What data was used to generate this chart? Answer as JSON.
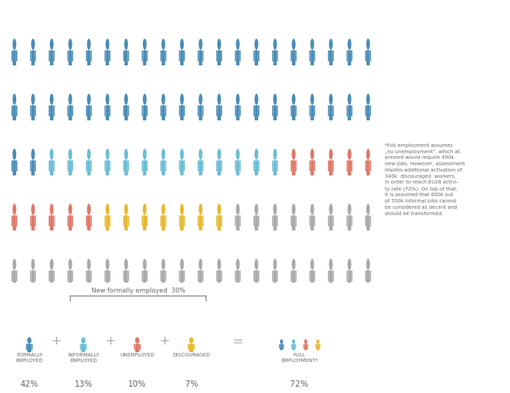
{
  "rows": 5,
  "cols": 20,
  "total_icons": 100,
  "formally_employed_count": 42,
  "informally_employed_count": 13,
  "unemployed_count": 10,
  "discouraged_count": 7,
  "inactive_count": 28,
  "color_dark_blue": "#4A8DB7",
  "color_light_blue": "#6BBDD4",
  "color_red": "#E07868",
  "color_yellow": "#E8B830",
  "color_gray": "#AAAAAA",
  "color_bg": "#FFFFFF",
  "color_bracket": "#999999",
  "color_text": "#666666",
  "label_formally": "FORMALLY\nEMPLOYED",
  "label_informally": "INFORMALLY\nEMPLOYED",
  "label_unemployed": "UNEMPLOYED",
  "label_discouraged": "DISCOURAGED",
  "label_full": "FULL\nEMPLOYMENT*",
  "pct_formally": "42%",
  "pct_informally": "13%",
  "pct_unemployed": "10%",
  "pct_discouraged": "7%",
  "pct_full": "72%",
  "new_formally_label": "New formally employed  30%",
  "footnote": "*Full employment assumes\n„no unemployment“, which at\npresent would require 490k\nnew jobs. However, assessment\nimplies additional activation of\n340k  discouraged  workers,\nin order to reach EU28 activi-\nty rate (72%). On top of that,\nit is assumed that 600k out\nof 700k informal jobs cannot\nbe considered as decent and\nshould be transformed.",
  "figure_width": 7.25,
  "figure_height": 5.59,
  "dpi": 100
}
